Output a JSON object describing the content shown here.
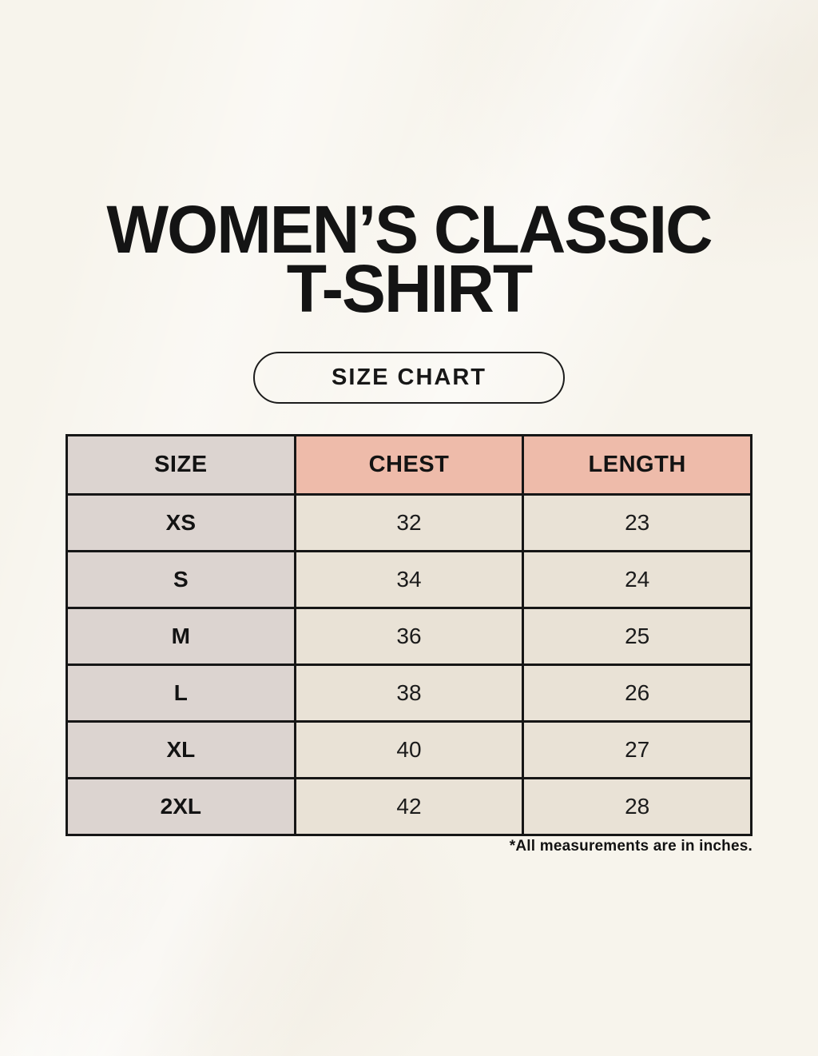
{
  "page": {
    "title_line1": "WOMEN’S CLASSIC",
    "title_line2": "T-SHIRT",
    "badge_label": "SIZE CHART",
    "footnote": "*All measurements are in inches."
  },
  "table": {
    "headers": [
      "SIZE",
      "CHEST",
      "LENGTH"
    ],
    "rows": [
      {
        "size": "XS",
        "chest": "32",
        "length": "23"
      },
      {
        "size": "S",
        "chest": "34",
        "length": "24"
      },
      {
        "size": "M",
        "chest": "36",
        "length": "25"
      },
      {
        "size": "L",
        "chest": "38",
        "length": "26"
      },
      {
        "size": "XL",
        "chest": "40",
        "length": "27"
      },
      {
        "size": "2XL",
        "chest": "42",
        "length": "28"
      }
    ]
  },
  "colors": {
    "background": "#f7f4ec",
    "accent_salmon": "#eebbaa",
    "column_gray": "#dcd4d0",
    "cell_cream": "#e9e2d6",
    "border_black": "#161616",
    "text_black": "#131313"
  }
}
